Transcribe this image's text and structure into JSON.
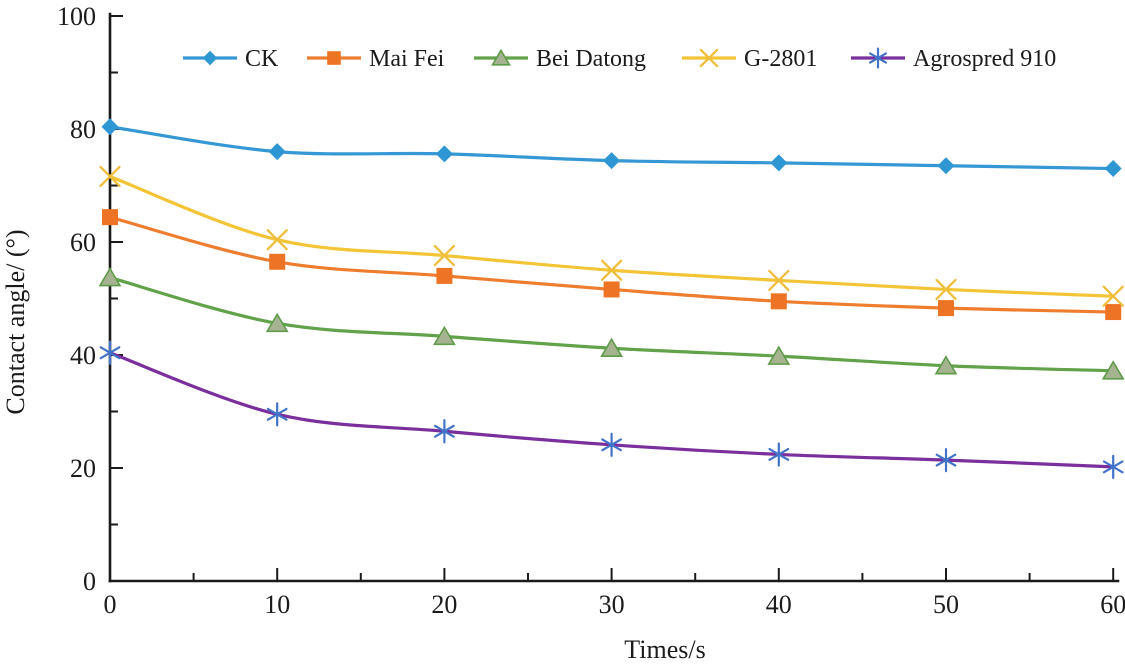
{
  "figure": {
    "background": "#ffffff",
    "text_color": "#1b1b1b",
    "axis_color": "#1a1a1a"
  },
  "chart_data": {
    "type": "line",
    "title": "",
    "xlabel": "Times/s",
    "ylabel": "Contact angle/ (°)",
    "x": [
      0,
      10,
      20,
      30,
      40,
      50,
      60
    ],
    "xlim": [
      0,
      60
    ],
    "ylim": [
      0,
      100
    ],
    "x_major_ticks": [
      0,
      10,
      20,
      30,
      40,
      50,
      60
    ],
    "x_minor_ticks": [
      5,
      15,
      25,
      35,
      45,
      55
    ],
    "y_major_ticks": [
      0,
      20,
      40,
      60,
      80,
      100
    ],
    "y_minor_ticks": [
      10,
      30,
      50,
      70,
      90
    ],
    "grid": "off",
    "smooth_lines": true,
    "legend_position": "top-inside-horizontal",
    "series": [
      {
        "name": "CK",
        "marker": "diamond",
        "line_color": "#3598D4",
        "marker_fill": "#2E96D3",
        "marker_stroke": "#2E96D3",
        "values": [
          80.4,
          76.0,
          75.6,
          74.4,
          74.0,
          73.5,
          73.0
        ]
      },
      {
        "name": "Mai Fei",
        "marker": "square",
        "line_color": "#EE7D2F",
        "marker_fill": "#EE7425",
        "marker_stroke": "#EE7425",
        "values": [
          64.4,
          56.5,
          54.0,
          51.6,
          49.5,
          48.3,
          47.6
        ]
      },
      {
        "name": "Bei Datong",
        "marker": "triangle",
        "line_color": "#61A24A",
        "marker_fill": "#A6B391",
        "marker_stroke": "#5E9C49",
        "values": [
          53.7,
          45.6,
          43.3,
          41.2,
          39.8,
          38.1,
          37.2
        ]
      },
      {
        "name": "G-2801",
        "marker": "x",
        "line_color": "#F4C437",
        "marker_fill": "#F4C437",
        "marker_stroke": "#F0BE3C",
        "values": [
          71.6,
          60.4,
          57.6,
          55.0,
          53.2,
          51.6,
          50.4
        ]
      },
      {
        "name": "Agrospred 910",
        "marker": "asterisk",
        "line_color": "#7A2F9C",
        "marker_fill": "#4273C8",
        "marker_stroke": "#4273C8",
        "values": [
          40.4,
          29.5,
          26.5,
          24.1,
          22.4,
          21.4,
          20.2
        ]
      }
    ]
  }
}
